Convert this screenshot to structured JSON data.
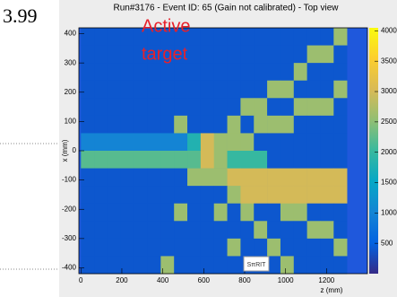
{
  "page_text": "3.99",
  "chart_data": {
    "type": "heatmap",
    "title": "Run#3176 - Event ID: 65 (Gain not calibrated) - Top view",
    "annotation": [
      "Active",
      "target"
    ],
    "logo": "SπRIT",
    "x_label": "z (mm)",
    "y_label": "x (mm)",
    "xlim": [
      -10,
      1400
    ],
    "xticks": [
      0,
      200,
      400,
      600,
      800,
      1000,
      1200
    ],
    "ylim": [
      -420,
      420
    ],
    "yticks": [
      -400,
      -300,
      -200,
      -100,
      0,
      100,
      200,
      300,
      400
    ],
    "zlim": [
      0,
      4050
    ],
    "zticks": [
      500,
      1000,
      1500,
      2000,
      2500,
      3000,
      3500,
      4000
    ],
    "colormap": [
      "#352a87",
      "#0363e1",
      "#1485d4",
      "#06a7c6",
      "#38b99e",
      "#92bf73",
      "#d9ba56",
      "#fcce2e",
      "#f9fb0e"
    ],
    "x": [
      32.5,
      97.5,
      162.5,
      227.5,
      292.5,
      357.5,
      422.5,
      487.5,
      552.5,
      617.5,
      682.5,
      747.5,
      812.5,
      877.5,
      942.5,
      1007.5,
      1072.5,
      1137.5,
      1202.5,
      1267.5
    ],
    "y": [
      390,
      330,
      270,
      210,
      150,
      90,
      30,
      -30,
      -90,
      -150,
      -210,
      -270,
      -330,
      -390
    ],
    "values": [
      [
        400,
        400,
        400,
        400,
        400,
        400,
        400,
        400,
        400,
        400,
        400,
        400,
        400,
        400,
        400,
        400,
        400,
        400,
        400,
        2600
      ],
      [
        400,
        400,
        400,
        400,
        400,
        400,
        400,
        400,
        400,
        400,
        400,
        400,
        400,
        400,
        400,
        400,
        400,
        2600,
        2600,
        400
      ],
      [
        400,
        400,
        400,
        400,
        400,
        400,
        400,
        400,
        400,
        400,
        400,
        400,
        400,
        400,
        400,
        400,
        2600,
        400,
        400,
        400
      ],
      [
        400,
        400,
        400,
        400,
        400,
        400,
        400,
        400,
        400,
        400,
        400,
        400,
        400,
        400,
        2600,
        2600,
        400,
        400,
        400,
        2600
      ],
      [
        400,
        400,
        400,
        400,
        400,
        400,
        400,
        400,
        400,
        400,
        400,
        400,
        2600,
        2600,
        400,
        400,
        2600,
        2600,
        2600,
        400
      ],
      [
        400,
        400,
        400,
        400,
        400,
        400,
        400,
        2600,
        400,
        400,
        400,
        2600,
        400,
        2600,
        2600,
        2600,
        400,
        400,
        400,
        400
      ],
      [
        1000,
        1000,
        1000,
        1000,
        1000,
        1000,
        1000,
        1000,
        1800,
        3000,
        2600,
        2600,
        2600,
        400,
        400,
        400,
        400,
        400,
        400,
        400
      ],
      [
        2200,
        2200,
        2200,
        2200,
        2200,
        2200,
        2200,
        2200,
        2200,
        3000,
        2600,
        2000,
        2000,
        2000,
        400,
        400,
        400,
        400,
        400,
        400
      ],
      [
        400,
        400,
        400,
        400,
        400,
        400,
        400,
        400,
        2600,
        2600,
        2600,
        3000,
        3000,
        3000,
        3000,
        3000,
        3000,
        3000,
        3000,
        3000
      ],
      [
        400,
        400,
        400,
        400,
        400,
        400,
        400,
        400,
        400,
        400,
        400,
        2600,
        3000,
        3000,
        3000,
        3000,
        3000,
        3000,
        3000,
        3000
      ],
      [
        400,
        400,
        400,
        400,
        400,
        400,
        400,
        2600,
        400,
        400,
        2600,
        400,
        2600,
        400,
        400,
        2600,
        2600,
        400,
        400,
        400
      ],
      [
        400,
        400,
        400,
        400,
        400,
        400,
        400,
        400,
        400,
        400,
        400,
        400,
        400,
        2600,
        400,
        400,
        400,
        2600,
        2600,
        400
      ],
      [
        400,
        400,
        400,
        400,
        400,
        400,
        400,
        400,
        400,
        400,
        400,
        2600,
        400,
        400,
        2600,
        400,
        400,
        400,
        400,
        2600
      ],
      [
        400,
        400,
        400,
        400,
        400,
        400,
        2600,
        400,
        400,
        400,
        400,
        400,
        400,
        400,
        400,
        2600,
        400,
        400,
        400,
        400
      ]
    ]
  }
}
